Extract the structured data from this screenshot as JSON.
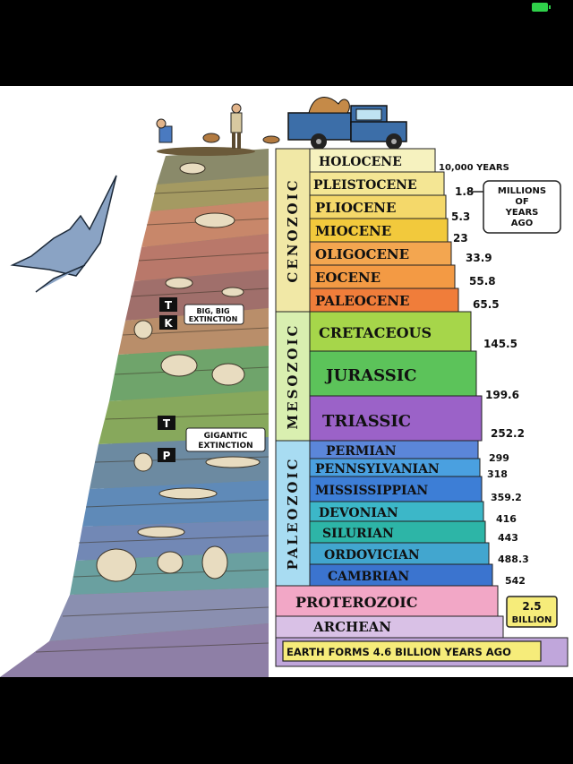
{
  "eras": [
    {
      "label": "CENOZOIC",
      "color": "#f1e8a6"
    },
    {
      "label": "MESOZOIC",
      "color": "#d9efb0"
    },
    {
      "label": "PALEOZOIC",
      "color": "#a8dcf2"
    }
  ],
  "periods": [
    {
      "name": "HOLOCENE",
      "age": "10,000 YEARS",
      "color": "#f6f2bf"
    },
    {
      "name": "PLEISTOCENE",
      "age": "1.8",
      "color": "#f4e694"
    },
    {
      "name": "PLIOCENE",
      "age": "5.3",
      "color": "#f4d86a"
    },
    {
      "name": "MIOCENE",
      "age": "23",
      "color": "#f2c93c"
    },
    {
      "name": "OLIGOCENE",
      "age": "33.9",
      "color": "#f3a650"
    },
    {
      "name": "EOCENE",
      "age": "55.8",
      "color": "#f39a44"
    },
    {
      "name": "PALEOCENE",
      "age": "65.5",
      "color": "#f07d3a"
    },
    {
      "name": "CRETACEOUS",
      "age": "145.5",
      "color": "#a6d64a"
    },
    {
      "name": "JURASSIC",
      "age": "199.6",
      "color": "#5cc35a"
    },
    {
      "name": "TRIASSIC",
      "age": "252.2",
      "color": "#9b62c8"
    },
    {
      "name": "PERMIAN",
      "age": "299",
      "color": "#5b86d9"
    },
    {
      "name": "PENNSYLVANIAN",
      "age": "318",
      "color": "#4aa0e0"
    },
    {
      "name": "MISSISSIPPIAN",
      "age": "359.2",
      "color": "#3d7ed6"
    },
    {
      "name": "DEVONIAN",
      "age": "416",
      "color": "#3cb7c8"
    },
    {
      "name": "SILURIAN",
      "age": "443",
      "color": "#2db5a7"
    },
    {
      "name": "ORDOVICIAN",
      "age": "488.3",
      "color": "#42a6cf"
    },
    {
      "name": "CAMBRIAN",
      "age": "542",
      "color": "#3b74cf"
    },
    {
      "name": "PROTEROZOIC",
      "age": "",
      "color": "#f2a7c6"
    },
    {
      "name": "ARCHEAN",
      "age": "",
      "color": "#d9c1e6"
    }
  ],
  "notes": {
    "millions_line1": "MILLIONS",
    "millions_line2": "OF",
    "millions_line3": "YEARS",
    "millions_line4": "AGO",
    "billion_value": "2.5",
    "billion_label": "BILLION",
    "earth_forms": "EARTH FORMS 4.6 BILLION YEARS AGO",
    "big_extinction_line1": "BIG, BIG",
    "big_extinction_line2": "EXTINCTION",
    "gigantic_line1": "GIGANTIC",
    "gigantic_line2": "EXTINCTION"
  },
  "boundary_markers": {
    "kt_top": "T",
    "kt_bottom": "K",
    "pt_top": "T",
    "pt_bottom": "P"
  },
  "icons": [
    "pterosaur-icon",
    "truck-icon",
    "explorers-icon",
    "fossil-icon"
  ]
}
